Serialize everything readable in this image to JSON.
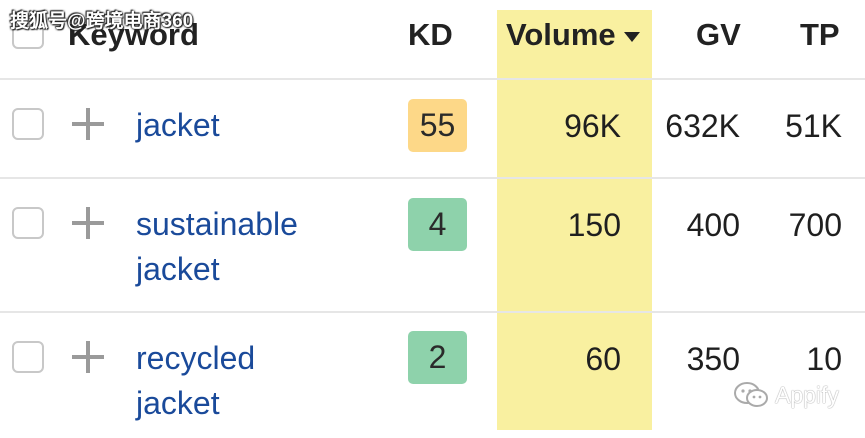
{
  "watermark": "搜狐号@跨境电商360",
  "header": {
    "keyword": "Keyword",
    "kd": "KD",
    "volume": "Volume",
    "gv": "GV",
    "tp": "TP"
  },
  "rows": [
    {
      "keyword_line1": "jacket",
      "keyword_line2": "",
      "kd": "55",
      "volume": "96K",
      "gv": "632K",
      "tp": "51K"
    },
    {
      "keyword_line1": "sustainable",
      "keyword_line2": "jacket",
      "kd": "4",
      "volume": "150",
      "gv": "400",
      "tp": "700"
    },
    {
      "keyword_line1": "recycled",
      "keyword_line2": "jacket",
      "kd": "2",
      "volume": "60",
      "gv": "350",
      "tp": "10"
    }
  ],
  "colors": {
    "volume_highlight": "#f9f0a0",
    "kd_medium": "#fdd888",
    "kd_easy": "#8ed2ab",
    "link": "#1a4a9a"
  },
  "logo": {
    "text": "Appify",
    "icon": "wechat-icon"
  }
}
